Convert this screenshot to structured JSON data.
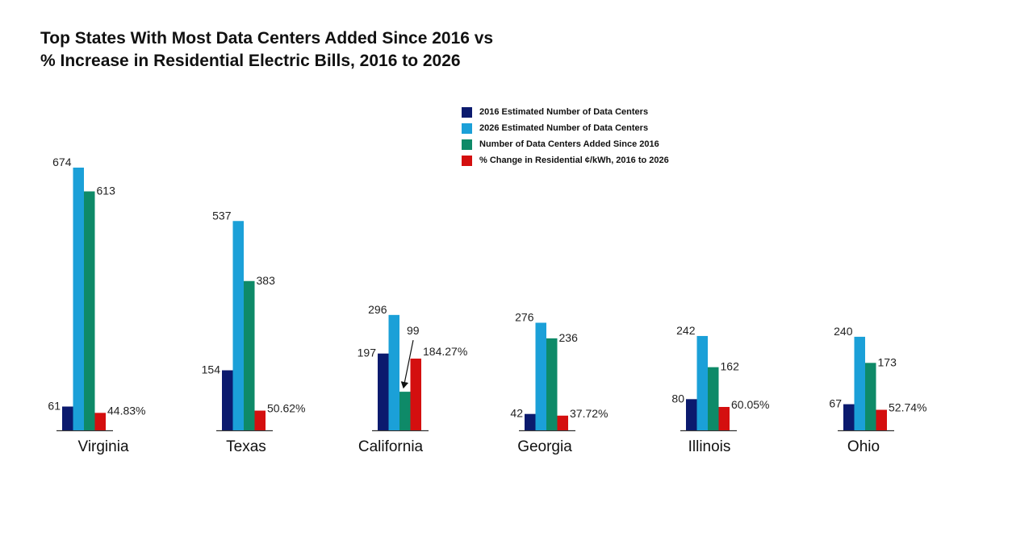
{
  "chart_data": {
    "type": "bar",
    "title": "Top States With Most Data Centers Added Since 2016 vs",
    "subtitle": "% Increase in Residential Electric Bills, 2016 to 2026",
    "categories": [
      "Virginia",
      "Texas",
      "California",
      "Georgia",
      "Illinois",
      "Ohio"
    ],
    "series": [
      {
        "name": "2016 Estimated Number of Data Centers",
        "color": "#0b1a6e",
        "values": [
          61,
          154,
          197,
          42,
          80,
          67
        ],
        "labels": [
          "61",
          "154",
          "197",
          "42",
          "80",
          "67"
        ]
      },
      {
        "name": "2026 Estimated Number of Data Centers",
        "color": "#1ba0d8",
        "values": [
          674,
          537,
          296,
          276,
          242,
          240
        ],
        "labels": [
          "674",
          "537",
          "296",
          "276",
          "242",
          "240"
        ]
      },
      {
        "name": "Number of Data Centers Added Since 2016",
        "color": "#0e8a68",
        "values": [
          613,
          383,
          99,
          236,
          162,
          173
        ],
        "labels": [
          "613",
          "383",
          "99",
          "236",
          "162",
          "173"
        ]
      },
      {
        "name": "% Change in Residential ¢/kWh, 2016 to 2026",
        "color": "#d40f0f",
        "values": [
          44.83,
          50.62,
          184.27,
          37.72,
          60.05,
          52.74
        ],
        "labels": [
          "44.83%",
          "50.62%",
          "184.27%",
          "37.72%",
          "60.05%",
          "52.74%"
        ]
      }
    ],
    "legend_position": "top-center",
    "grid": false
  }
}
